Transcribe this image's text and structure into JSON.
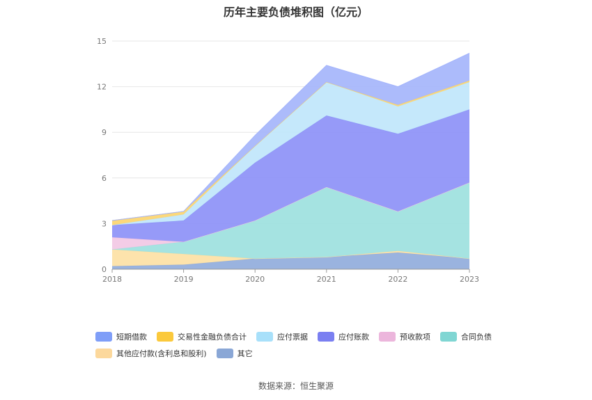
{
  "chart_data": {
    "type": "area",
    "title": "历年主要负债堆积图（亿元）",
    "xlabel": "",
    "ylabel": "",
    "categories": [
      "2018",
      "2019",
      "2020",
      "2021",
      "2022",
      "2023"
    ],
    "ylim": [
      0,
      15
    ],
    "yticks": [
      0,
      3,
      6,
      9,
      12,
      15
    ],
    "stacked": true,
    "grid": true,
    "legend_position": "bottom",
    "series": [
      {
        "name": "其它",
        "color": "#8fabdc",
        "values": [
          0.2,
          0.3,
          0.7,
          0.8,
          1.1,
          0.7
        ]
      },
      {
        "name": "其他应付款(含利息和股利)",
        "color": "#fde0a3",
        "values": [
          1.1,
          0.7,
          0.0,
          0.0,
          0.1,
          0.0
        ]
      },
      {
        "name": "合同负债",
        "color": "#9be0de",
        "values": [
          0.0,
          0.8,
          2.5,
          4.6,
          2.6,
          5.0
        ]
      },
      {
        "name": "预收款项",
        "color": "#f2c6e3",
        "values": [
          0.8,
          0.0,
          0.0,
          0.0,
          0.0,
          0.0
        ]
      },
      {
        "name": "应付账款",
        "color": "#8b8ff7",
        "values": [
          0.8,
          1.4,
          3.8,
          4.7,
          5.1,
          4.8
        ]
      },
      {
        "name": "应付票据",
        "color": "#bfe6fb",
        "values": [
          0.0,
          0.4,
          1.1,
          2.2,
          1.8,
          1.8
        ]
      },
      {
        "name": "交易性金融负债合计",
        "color": "#fcd46b",
        "values": [
          0.3,
          0.2,
          0.0,
          0.0,
          0.1,
          0.1
        ]
      },
      {
        "name": "短期借款",
        "color": "#a3b4fb",
        "values": [
          0.0,
          0.0,
          0.7,
          1.1,
          1.2,
          1.8
        ]
      }
    ],
    "legend_order": [
      "短期借款",
      "交易性金融负债合计",
      "应付票据",
      "应付账款",
      "预收款项",
      "合同负债",
      "其他应付款(含利息和股利)",
      "其它"
    ],
    "legend_colors": {
      "短期借款": "#7f9ef8",
      "交易性金融负债合计": "#fbc93c",
      "应付票据": "#a8e0fa",
      "应付账款": "#7a7ff1",
      "预收款项": "#ecb6dc",
      "合同负债": "#80d6d3",
      "其他应付款(含利息和股利)": "#fcd89c",
      "其它": "#8aa7d6"
    }
  },
  "source_note": "数据来源：恒生聚源"
}
